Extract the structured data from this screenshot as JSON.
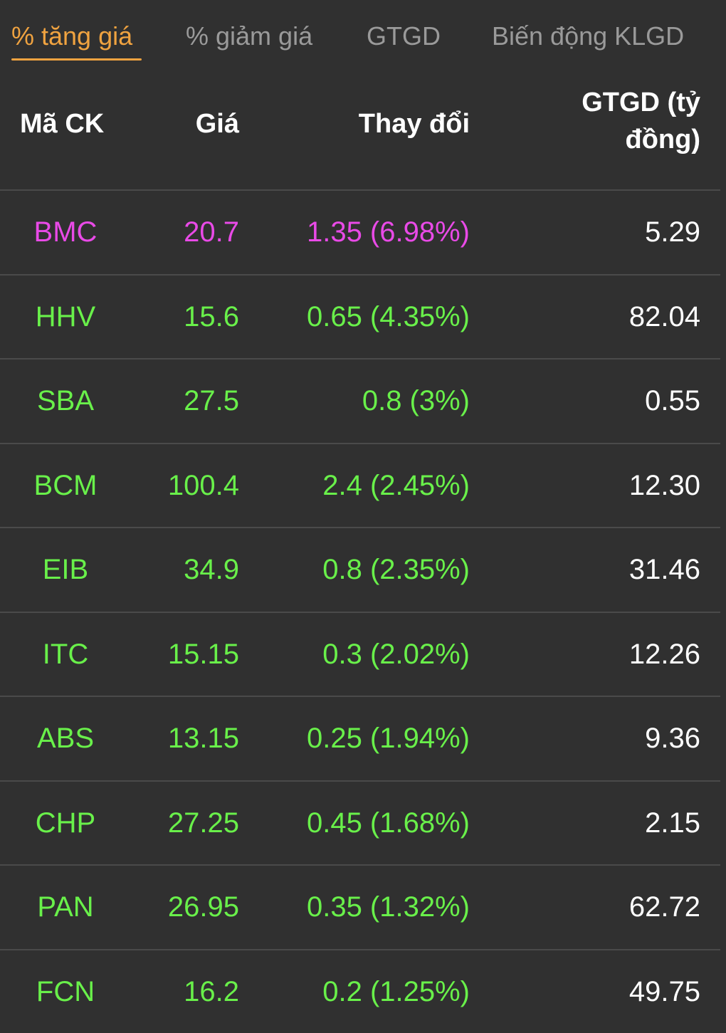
{
  "tabs": [
    {
      "label": "% tăng giá",
      "active": true
    },
    {
      "label": "% giảm giá",
      "active": false
    },
    {
      "label": "GTGD",
      "active": false
    },
    {
      "label": "Biến động KLGD",
      "active": false
    }
  ],
  "colors": {
    "active_tab": "#f0a340",
    "ceiling": "#e94ae7",
    "up": "#69f04a",
    "background": "#303030"
  },
  "table": {
    "headers": {
      "code": "Mã CK",
      "price": "Giá",
      "change": "Thay đổi",
      "value_line1": "GTGD (tỷ",
      "value_line2": "đồng)"
    },
    "rows": [
      {
        "code": "BMC",
        "price": "20.7",
        "change": "1.35 (6.98%)",
        "value": "5.29",
        "status": "ceiling"
      },
      {
        "code": "HHV",
        "price": "15.6",
        "change": "0.65 (4.35%)",
        "value": "82.04",
        "status": "up"
      },
      {
        "code": "SBA",
        "price": "27.5",
        "change": "0.8 (3%)",
        "value": "0.55",
        "status": "up"
      },
      {
        "code": "BCM",
        "price": "100.4",
        "change": "2.4 (2.45%)",
        "value": "12.30",
        "status": "up"
      },
      {
        "code": "EIB",
        "price": "34.9",
        "change": "0.8 (2.35%)",
        "value": "31.46",
        "status": "up"
      },
      {
        "code": "ITC",
        "price": "15.15",
        "change": "0.3 (2.02%)",
        "value": "12.26",
        "status": "up"
      },
      {
        "code": "ABS",
        "price": "13.15",
        "change": "0.25 (1.94%)",
        "value": "9.36",
        "status": "up"
      },
      {
        "code": "CHP",
        "price": "27.25",
        "change": "0.45 (1.68%)",
        "value": "2.15",
        "status": "up"
      },
      {
        "code": "PAN",
        "price": "26.95",
        "change": "0.35 (1.32%)",
        "value": "62.72",
        "status": "up"
      },
      {
        "code": "FCN",
        "price": "16.2",
        "change": "0.2 (1.25%)",
        "value": "49.75",
        "status": "up"
      }
    ]
  }
}
